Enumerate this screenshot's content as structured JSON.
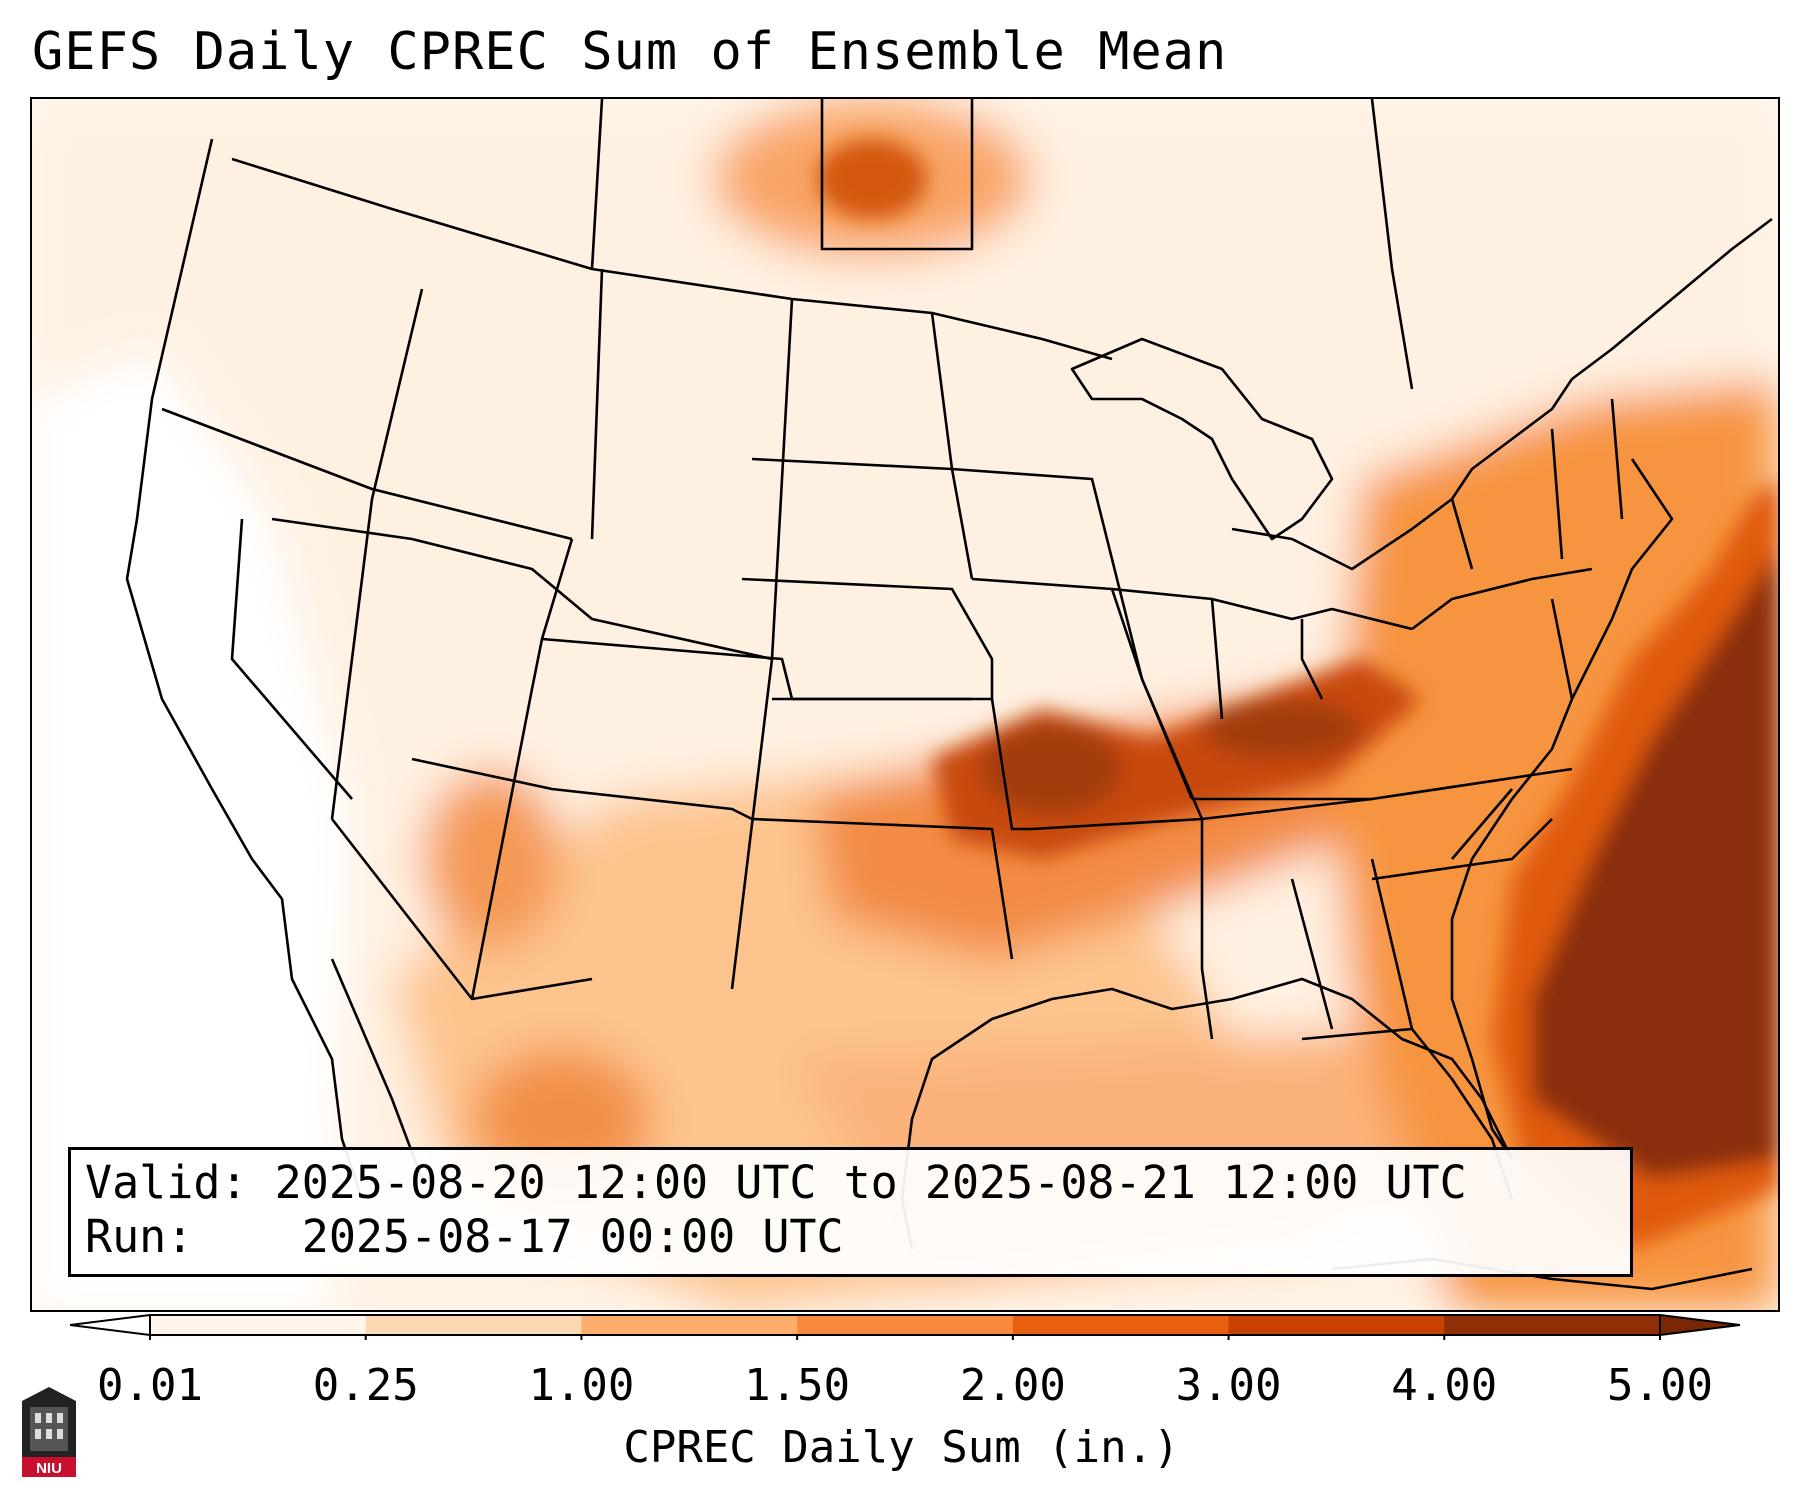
{
  "title": "GEFS Daily CPREC Sum of Ensemble Mean",
  "info": {
    "valid_label": "Valid:",
    "valid_value": "2025-08-20 12:00 UTC to 2025-08-21 12:00 UTC",
    "run_label": "Run:",
    "run_value": "2025-08-17 00:00 UTC"
  },
  "colorbar": {
    "label": "CPREC Daily Sum (in.)",
    "ticks": [
      "0.01",
      "0.25",
      "1.00",
      "1.50",
      "2.00",
      "3.00",
      "4.00",
      "5.00"
    ],
    "colors": [
      "#fff5eb",
      "#fdd8b2",
      "#fdad6b",
      "#f98a3d",
      "#e8600f",
      "#c84102",
      "#902e06"
    ],
    "extend": "both"
  },
  "logo": {
    "text": "NIU",
    "color": "#c8102e"
  },
  "map": {
    "domain": "contiguous United States",
    "max_region_1": "Atlantic off the Southeast coast",
    "max_region_2": "Ohio and Tennessee Valleys to Missouri"
  }
}
